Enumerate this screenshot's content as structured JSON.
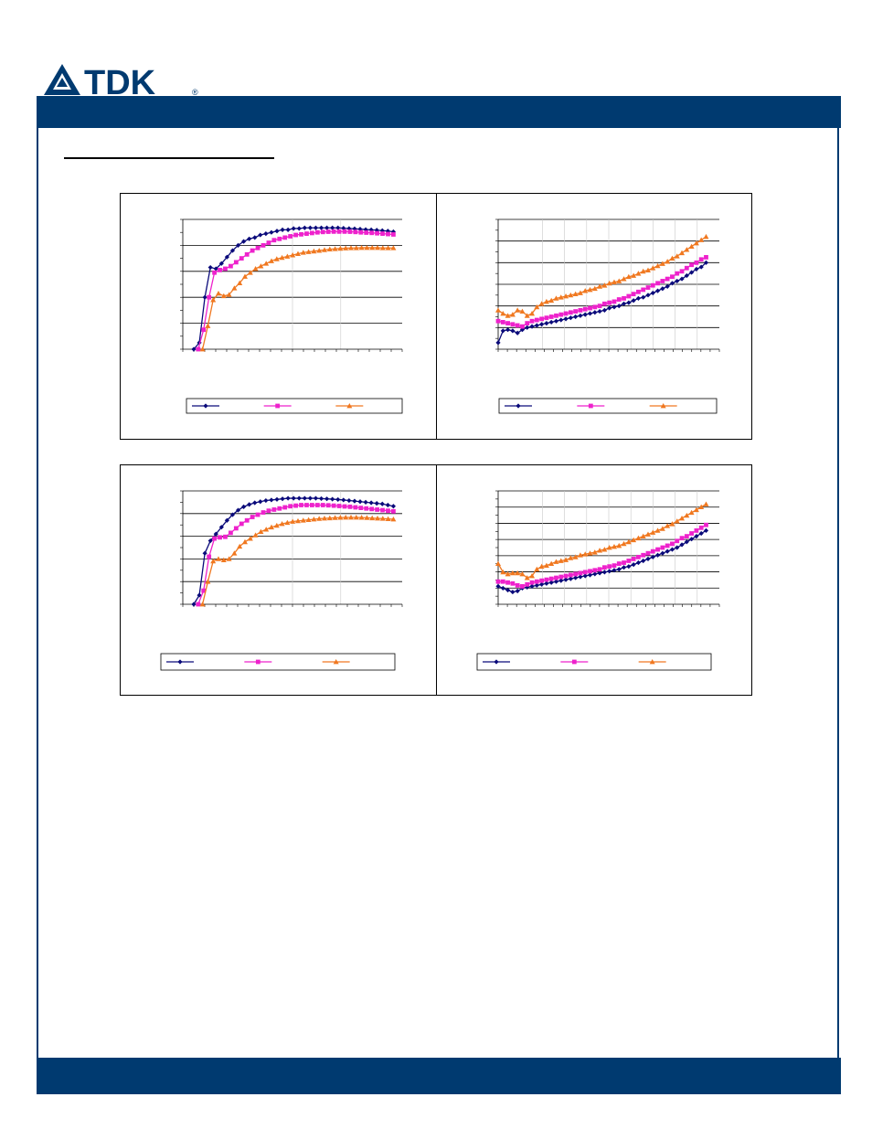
{
  "brand": {
    "name": "TDK",
    "color_primary": "#003a70",
    "registered_mark": "®"
  },
  "chart_data": [
    {
      "type": "line",
      "title": "",
      "xlabel": "",
      "ylabel": "",
      "legend_position": "bottom",
      "xlim": [
        0,
        50
      ],
      "ylim": [
        0,
        100
      ],
      "grid": "horizontal",
      "series": [
        {
          "color": "#0a0a7a",
          "marker": "diamond",
          "values": [
            0,
            5,
            40,
            63,
            62,
            66,
            71,
            76,
            80,
            83,
            85,
            86,
            88,
            89,
            90,
            91,
            92,
            92,
            93,
            93,
            93.5,
            93.5,
            93.5,
            93.5,
            93.5,
            93.5,
            93.5,
            93.2,
            93,
            92.8,
            92.5,
            92.2,
            92,
            91.7,
            91.4,
            91,
            90.5
          ]
        },
        {
          "color": "#ee22cc",
          "marker": "square",
          "values": [
            0,
            15,
            40,
            59,
            61,
            62,
            64,
            67,
            70,
            73,
            76,
            78,
            80,
            82,
            84,
            85,
            86,
            87,
            88,
            88.5,
            89,
            89.5,
            90,
            90.3,
            90.5,
            90.6,
            90.6,
            90.6,
            90.5,
            90.3,
            90,
            89.8,
            89.6,
            89.3,
            89,
            88.7,
            88.4
          ]
        },
        {
          "color": "#f07820",
          "marker": "triangle",
          "values": [
            0,
            18,
            38,
            43,
            41,
            42,
            47,
            51,
            56,
            59,
            62,
            64,
            66,
            68,
            69.5,
            70.5,
            71.5,
            72.5,
            73.5,
            74.5,
            75,
            75.5,
            76,
            76.5,
            77,
            77.3,
            77.6,
            77.8,
            78,
            78,
            78.2,
            78.2,
            78.2,
            78.2,
            78,
            78,
            78
          ]
        }
      ]
    },
    {
      "type": "line",
      "title": "",
      "xlabel": "",
      "ylabel": "",
      "legend_position": "bottom",
      "xlim": [
        0,
        50
      ],
      "ylim": [
        0,
        120
      ],
      "grid": "horizontal",
      "series": [
        {
          "color": "#0a0a7a",
          "marker": "diamond",
          "values": [
            6,
            17,
            18,
            17,
            15,
            18,
            20,
            21,
            22,
            23,
            24,
            25,
            26,
            27,
            28,
            29,
            30,
            31,
            32,
            33,
            34,
            35,
            36,
            38,
            39,
            40,
            42,
            43,
            45,
            47,
            48,
            50,
            52,
            54,
            56,
            58,
            61,
            63,
            65,
            68,
            71,
            74,
            76,
            80
          ]
        },
        {
          "color": "#ee22cc",
          "marker": "square",
          "values": [
            26,
            25,
            24,
            23,
            22,
            21,
            24,
            26,
            27,
            28,
            29,
            30,
            31,
            32,
            33,
            34,
            35,
            36,
            37,
            38,
            39,
            40,
            42,
            43,
            44,
            46,
            47,
            49,
            51,
            53,
            55,
            57,
            59,
            61,
            63,
            65,
            67,
            70,
            72,
            75,
            78,
            80,
            83,
            85
          ]
        },
        {
          "color": "#f07820",
          "marker": "triangle",
          "values": [
            36,
            33,
            31,
            32,
            36,
            35,
            31,
            33,
            39,
            42,
            44,
            45,
            47,
            48,
            49,
            50,
            51,
            52,
            54,
            55,
            56,
            58,
            59,
            61,
            62,
            63,
            65,
            67,
            68,
            70,
            72,
            73,
            75,
            77,
            79,
            81,
            84,
            86,
            89,
            92,
            95,
            98,
            101,
            104
          ]
        }
      ]
    },
    {
      "type": "line",
      "title": "",
      "xlabel": "",
      "ylabel": "",
      "legend_position": "bottom",
      "xlim": [
        0,
        50
      ],
      "ylim": [
        0,
        100
      ],
      "grid": "horizontal",
      "series": [
        {
          "color": "#0a0a7a",
          "marker": "diamond",
          "values": [
            0,
            8,
            45,
            56,
            62,
            68,
            74,
            79,
            83,
            86,
            88,
            89.5,
            90.5,
            91.5,
            92,
            92.5,
            93,
            93.5,
            93.5,
            93.5,
            93.5,
            93.5,
            93.5,
            93.2,
            93,
            92.7,
            92.4,
            92,
            91.5,
            91,
            90.5,
            90,
            89.5,
            89,
            88.5,
            87.5,
            86.5
          ]
        },
        {
          "color": "#ee22cc",
          "marker": "square",
          "values": [
            0,
            12,
            42,
            58,
            59,
            59.5,
            63,
            67,
            71,
            74,
            77,
            79,
            81,
            82.5,
            83.5,
            84.5,
            85.5,
            86.5,
            87,
            87.5,
            87.5,
            87.5,
            87.5,
            87.5,
            87.3,
            87,
            86.7,
            86.3,
            86,
            85.5,
            85,
            84.5,
            84,
            83.5,
            83,
            82.5,
            82
          ]
        },
        {
          "color": "#f07820",
          "marker": "triangle",
          "values": [
            0,
            20,
            38,
            40,
            39,
            40,
            45,
            51,
            55,
            58,
            61,
            64,
            66,
            68,
            69.5,
            71,
            72,
            73,
            73.5,
            74,
            74.5,
            75,
            75.5,
            75.8,
            76,
            76.3,
            76.5,
            76.6,
            76.6,
            76.6,
            76.5,
            76.3,
            76,
            75.8,
            75.6,
            75.3,
            75
          ]
        }
      ]
    },
    {
      "type": "line",
      "title": "",
      "xlabel": "",
      "ylabel": "",
      "legend_position": "bottom",
      "xlim": [
        0,
        50
      ],
      "ylim": [
        0,
        120
      ],
      "grid": "horizontal",
      "series": [
        {
          "color": "#0a0a7a",
          "marker": "diamond",
          "values": [
            19,
            17,
            15,
            13,
            14,
            17,
            18,
            19,
            20,
            21,
            22,
            23,
            24,
            25,
            26,
            27,
            28,
            29,
            30,
            31,
            32,
            33,
            34,
            35,
            36,
            37,
            39,
            40,
            42,
            44,
            46,
            48,
            50,
            52,
            54,
            56,
            58,
            60,
            63,
            66,
            69,
            72,
            75,
            78
          ]
        },
        {
          "color": "#ee22cc",
          "marker": "square",
          "values": [
            24,
            24,
            23,
            22,
            20,
            19,
            21,
            23,
            24,
            25,
            26,
            27,
            28,
            29,
            30,
            31,
            32,
            33,
            34,
            35,
            36,
            37,
            39,
            40,
            41,
            43,
            44,
            46,
            48,
            50,
            52,
            54,
            56,
            58,
            60,
            62,
            64,
            67,
            70,
            72,
            75,
            78,
            81,
            84
          ]
        },
        {
          "color": "#f07820",
          "marker": "triangle",
          "values": [
            43,
            34,
            32,
            33,
            33,
            32,
            28,
            30,
            37,
            40,
            41,
            43,
            45,
            46,
            47,
            49,
            50,
            52,
            53,
            54,
            55,
            57,
            58,
            60,
            61,
            62,
            64,
            66,
            68,
            70,
            72,
            74,
            76,
            78,
            80,
            83,
            85,
            88,
            91,
            94,
            97,
            100,
            103,
            106
          ]
        }
      ]
    }
  ]
}
